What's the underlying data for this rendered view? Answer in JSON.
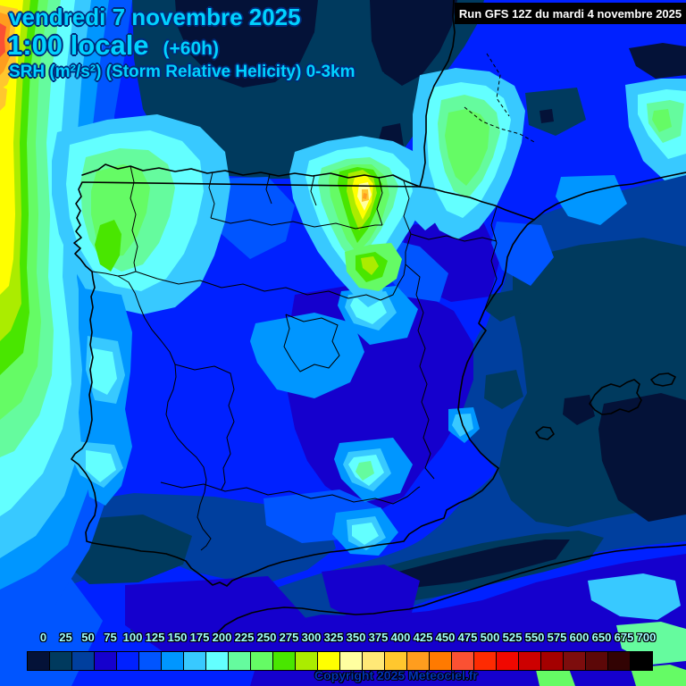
{
  "header": {
    "date": "vendredi 7 novembre 2025",
    "time": "1:00 locale",
    "offset": "(+60h)",
    "variable": "SRH (m²/s²) (Storm Relative Helicity) 0-3km"
  },
  "run_box": {
    "label": "Run GFS 12Z du mardi 4 novembre 2025"
  },
  "colorbar": {
    "unit": "m²/s²",
    "values": [
      "0",
      "25",
      "50",
      "75",
      "100",
      "125",
      "150",
      "175",
      "200",
      "225",
      "250",
      "275",
      "300",
      "325",
      "350",
      "375",
      "400",
      "425",
      "450",
      "475",
      "500",
      "525",
      "550",
      "575",
      "600",
      "650",
      "675",
      "700"
    ],
    "colors": [
      "#041238",
      "#003a5e",
      "#003f9e",
      "#1500cd",
      "#0021ff",
      "#0055ff",
      "#0096ff",
      "#38c9ff",
      "#63ffff",
      "#65fb9e",
      "#65fb65",
      "#49e600",
      "#abec00",
      "#ffff00",
      "#ffffa0",
      "#ffe877",
      "#ffc72e",
      "#ff9d1e",
      "#ff7a00",
      "#fb5133",
      "#fe2b02",
      "#f10800",
      "#cd0000",
      "#a40000",
      "#7d0d0d",
      "#5c0808",
      "#320303",
      "#000000"
    ]
  },
  "footer": {
    "copyright": "Copyright 2025 Meteociel.fr"
  },
  "accents": {
    "header_text": "#00d2ff",
    "header_outline": "#002a7a",
    "scale_label": "#a0ffff",
    "run_text": "#ffffff",
    "run_background": "#000000",
    "copyright_text": "#0033bb"
  }
}
